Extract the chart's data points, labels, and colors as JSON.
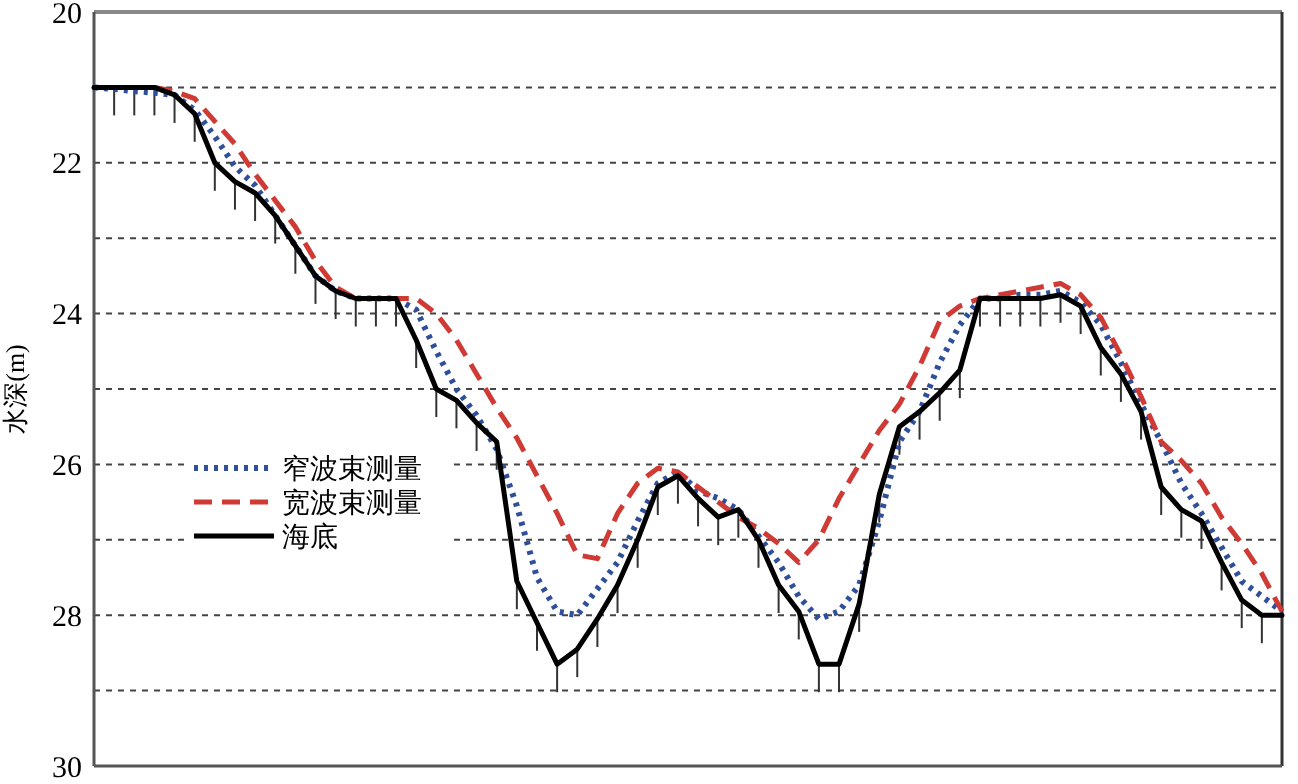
{
  "chart_data": {
    "type": "line",
    "ylabel": "水深(m)",
    "ylim": [
      30,
      20
    ],
    "yticks": [
      20,
      {
        "value": 21,
        "label": null
      },
      22,
      {
        "value": 23,
        "label": null
      },
      24,
      {
        "value": 25,
        "label": null
      },
      26,
      {
        "value": 27,
        "label": null
      },
      28,
      {
        "value": 29,
        "label": null
      },
      30
    ],
    "tick_labels": "y",
    "grid": "y",
    "legend": "left",
    "marker": "none",
    "categories": [
      null,
      null,
      null,
      null,
      null,
      null,
      null,
      null,
      null,
      null,
      null,
      null,
      null,
      null,
      null,
      null,
      null,
      null,
      null,
      null,
      null,
      null,
      null,
      null,
      null,
      null,
      null,
      null,
      null,
      null,
      null,
      null,
      null,
      null,
      null,
      null,
      null,
      null,
      null,
      null,
      null,
      null,
      null,
      null,
      null,
      null,
      null,
      null,
      null,
      null,
      null,
      null,
      null,
      null,
      null,
      null,
      null,
      null,
      null,
      null
    ],
    "series": [
      {
        "name": "窄波束测量",
        "color": "#2f4f9a",
        "line_style": "dotted",
        "values": [
          21.0,
          21.02,
          21.05,
          21.07,
          21.1,
          21.3,
          21.65,
          22.05,
          22.3,
          22.7,
          23.1,
          23.5,
          23.7,
          23.8,
          23.8,
          23.8,
          23.95,
          24.5,
          25.0,
          25.35,
          25.8,
          26.55,
          27.5,
          27.95,
          28.0,
          27.65,
          27.3,
          26.75,
          26.25,
          26.1,
          26.35,
          26.45,
          26.6,
          26.95,
          27.3,
          27.75,
          28.05,
          27.95,
          27.6,
          26.75,
          25.7,
          25.3,
          24.65,
          24.15,
          23.8,
          23.8,
          23.75,
          23.75,
          23.7,
          23.85,
          24.15,
          24.65,
          25.2,
          25.7,
          26.25,
          26.65,
          27.1,
          27.55,
          27.75,
          27.95
        ]
      },
      {
        "name": "宽波束测量",
        "color": "#d03a35",
        "line_style": "dashed",
        "values": [
          null,
          null,
          null,
          21.0,
          21.05,
          21.15,
          21.45,
          21.75,
          22.15,
          22.5,
          22.85,
          23.3,
          23.65,
          23.8,
          23.8,
          23.8,
          23.8,
          24.0,
          24.35,
          24.8,
          25.25,
          25.65,
          26.15,
          26.65,
          27.2,
          27.25,
          26.65,
          26.25,
          26.05,
          26.1,
          26.3,
          26.5,
          26.7,
          26.85,
          27.05,
          27.3,
          27.0,
          26.45,
          26.0,
          25.55,
          25.2,
          24.7,
          24.1,
          23.9,
          23.8,
          23.75,
          23.7,
          23.65,
          23.6,
          23.75,
          24.05,
          24.55,
          25.1,
          25.7,
          25.95,
          26.25,
          26.7,
          27.05,
          27.45,
          27.95
        ]
      },
      {
        "name": "海底",
        "color": "#000000",
        "line_style": "solid",
        "values": [
          21.0,
          21.0,
          21.0,
          21.0,
          21.1,
          21.35,
          22.0,
          22.25,
          22.4,
          22.7,
          23.1,
          23.5,
          23.7,
          23.8,
          23.8,
          23.8,
          24.35,
          25.0,
          25.15,
          25.45,
          25.7,
          27.55,
          28.1,
          28.65,
          28.45,
          28.05,
          27.6,
          27.0,
          26.3,
          26.15,
          26.45,
          26.7,
          26.6,
          27.0,
          27.6,
          27.95,
          28.65,
          28.65,
          27.85,
          26.4,
          25.5,
          25.3,
          25.05,
          24.75,
          23.8,
          23.8,
          23.8,
          23.8,
          23.75,
          23.9,
          24.45,
          24.8,
          25.3,
          26.3,
          26.6,
          26.75,
          27.3,
          27.8,
          28.0,
          28.0
        ]
      }
    ]
  }
}
